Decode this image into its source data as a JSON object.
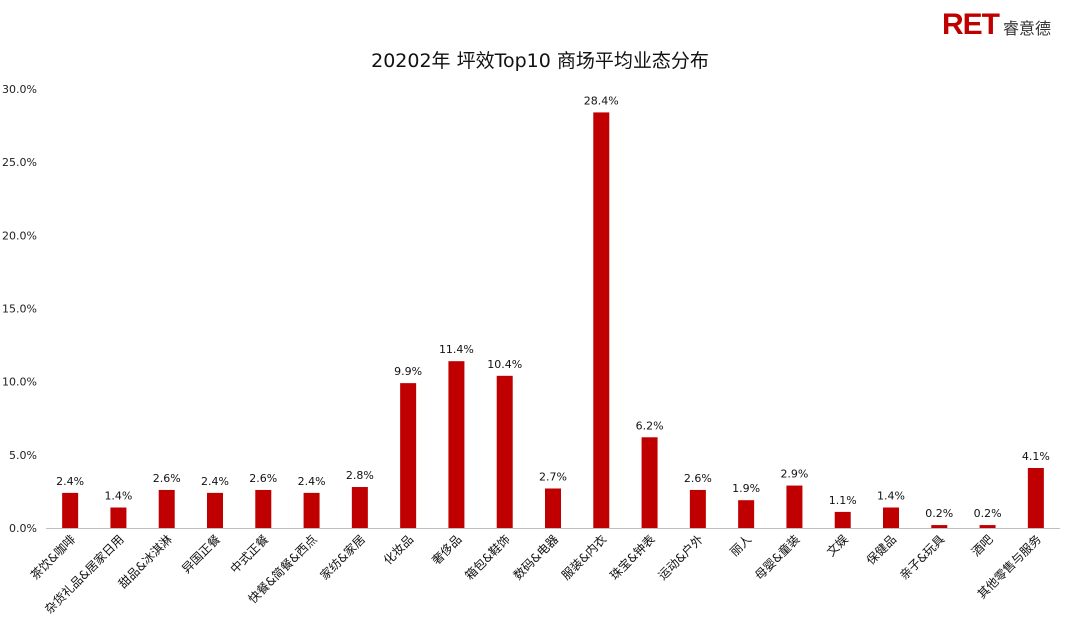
{
  "brand": {
    "logo_latin": "RET",
    "logo_cn": "睿意德",
    "color": "#c00000"
  },
  "chart_data": {
    "type": "bar",
    "title": "20202年 坪效Top10 商场平均业态分布",
    "xlabel": "",
    "ylabel": "",
    "ylim": [
      0,
      30
    ],
    "yticks": [
      "0.0%",
      "5.0%",
      "10.0%",
      "15.0%",
      "20.0%",
      "25.0%",
      "30.0%"
    ],
    "grid": false,
    "bar_color": "#c00000",
    "categories": [
      "茶饮&咖啡",
      "杂货礼品&居家日用",
      "甜品&冰淇淋",
      "异国正餐",
      "中式正餐",
      "快餐&简餐&西点",
      "家纺&家居",
      "化妆品",
      "奢侈品",
      "箱包&鞋饰",
      "数码&电器",
      "服装&内衣",
      "珠宝&钟表",
      "运动&户外",
      "丽人",
      "母婴&童装",
      "文娱",
      "保健品",
      "亲子&玩具",
      "酒吧",
      "其他零售与服务"
    ],
    "values": [
      2.4,
      1.4,
      2.6,
      2.4,
      2.6,
      2.4,
      2.8,
      9.9,
      11.4,
      10.4,
      2.7,
      28.4,
      6.2,
      2.6,
      1.9,
      2.9,
      1.1,
      1.4,
      0.2,
      0.2,
      4.1
    ],
    "data_labels": [
      "2.4%",
      "1.4%",
      "2.6%",
      "2.4%",
      "2.6%",
      "2.4%",
      "2.8%",
      "9.9%",
      "11.4%",
      "10.4%",
      "2.7%",
      "28.4%",
      "6.2%",
      "2.6%",
      "1.9%",
      "2.9%",
      "1.1%",
      "1.4%",
      "0.2%",
      "0.2%",
      "4.1%"
    ]
  }
}
